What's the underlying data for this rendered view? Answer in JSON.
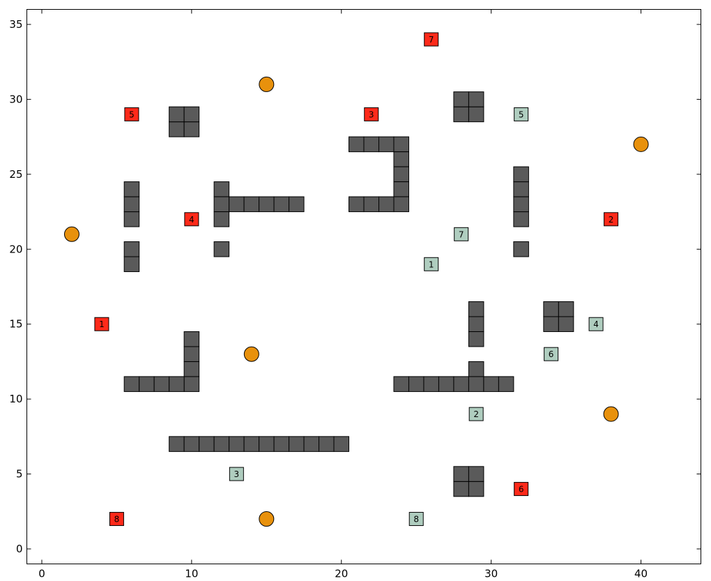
{
  "chart_data": {
    "type": "scatter",
    "title": "",
    "xlabel": "",
    "ylabel": "",
    "xlim": [
      -1,
      44
    ],
    "ylim": [
      -1,
      36
    ],
    "xticks": [
      0,
      10,
      20,
      30,
      40
    ],
    "yticks": [
      0,
      5,
      10,
      15,
      20,
      25,
      30,
      35
    ],
    "grid": false,
    "legend": "none",
    "colors": {
      "obstacle": "#5a5a5a",
      "goal": "#e8910c",
      "red_agent": "#ff2a1a",
      "green_agent": "#afcdbf",
      "edge": "#000000"
    },
    "series": [
      {
        "kind": "obstacles",
        "points": [
          [
            9,
            28
          ],
          [
            10,
            28
          ],
          [
            9,
            29
          ],
          [
            10,
            29
          ],
          [
            28,
            29
          ],
          [
            29,
            29
          ],
          [
            28,
            30
          ],
          [
            29,
            30
          ],
          [
            21,
            27
          ],
          [
            22,
            27
          ],
          [
            23,
            27
          ],
          [
            24,
            27
          ],
          [
            24,
            26
          ],
          [
            24,
            25
          ],
          [
            24,
            24
          ],
          [
            24,
            23
          ],
          [
            23,
            23
          ],
          [
            22,
            23
          ],
          [
            21,
            23
          ],
          [
            6,
            22
          ],
          [
            6,
            23
          ],
          [
            6,
            24
          ],
          [
            6,
            19
          ],
          [
            6,
            20
          ],
          [
            12,
            24
          ],
          [
            12,
            23
          ],
          [
            12,
            22
          ],
          [
            13,
            23
          ],
          [
            14,
            23
          ],
          [
            15,
            23
          ],
          [
            16,
            23
          ],
          [
            17,
            23
          ],
          [
            12,
            20
          ],
          [
            32,
            22
          ],
          [
            32,
            23
          ],
          [
            32,
            24
          ],
          [
            32,
            25
          ],
          [
            32,
            20
          ],
          [
            29,
            14
          ],
          [
            29,
            15
          ],
          [
            29,
            16
          ],
          [
            34,
            15
          ],
          [
            35,
            15
          ],
          [
            34,
            16
          ],
          [
            35,
            16
          ],
          [
            10,
            11
          ],
          [
            10,
            12
          ],
          [
            10,
            13
          ],
          [
            10,
            14
          ],
          [
            6,
            11
          ],
          [
            7,
            11
          ],
          [
            8,
            11
          ],
          [
            9,
            11
          ],
          [
            24,
            11
          ],
          [
            25,
            11
          ],
          [
            26,
            11
          ],
          [
            27,
            11
          ],
          [
            28,
            11
          ],
          [
            29,
            11
          ],
          [
            30,
            11
          ],
          [
            31,
            11
          ],
          [
            29,
            12
          ],
          [
            9,
            7
          ],
          [
            10,
            7
          ],
          [
            11,
            7
          ],
          [
            12,
            7
          ],
          [
            13,
            7
          ],
          [
            14,
            7
          ],
          [
            15,
            7
          ],
          [
            16,
            7
          ],
          [
            17,
            7
          ],
          [
            18,
            7
          ],
          [
            19,
            7
          ],
          [
            20,
            7
          ],
          [
            28,
            4
          ],
          [
            29,
            4
          ],
          [
            28,
            5
          ],
          [
            29,
            5
          ]
        ]
      },
      {
        "kind": "goals",
        "points": [
          [
            15,
            31
          ],
          [
            40,
            27
          ],
          [
            2,
            21
          ],
          [
            14,
            13
          ],
          [
            38,
            9
          ],
          [
            15,
            2
          ]
        ]
      },
      {
        "kind": "red_agents",
        "points": [
          {
            "label": "1",
            "x": 4,
            "y": 15
          },
          {
            "label": "2",
            "x": 38,
            "y": 22
          },
          {
            "label": "3",
            "x": 22,
            "y": 29
          },
          {
            "label": "4",
            "x": 10,
            "y": 22
          },
          {
            "label": "5",
            "x": 6,
            "y": 29
          },
          {
            "label": "6",
            "x": 32,
            "y": 4
          },
          {
            "label": "7",
            "x": 26,
            "y": 34
          },
          {
            "label": "8",
            "x": 5,
            "y": 2
          }
        ]
      },
      {
        "kind": "green_agents",
        "points": [
          {
            "label": "1",
            "x": 26,
            "y": 19
          },
          {
            "label": "2",
            "x": 29,
            "y": 9
          },
          {
            "label": "3",
            "x": 13,
            "y": 5
          },
          {
            "label": "4",
            "x": 37,
            "y": 15
          },
          {
            "label": "5",
            "x": 32,
            "y": 29
          },
          {
            "label": "6",
            "x": 34,
            "y": 13
          },
          {
            "label": "7",
            "x": 28,
            "y": 21
          },
          {
            "label": "8",
            "x": 25,
            "y": 2
          }
        ]
      }
    ]
  }
}
